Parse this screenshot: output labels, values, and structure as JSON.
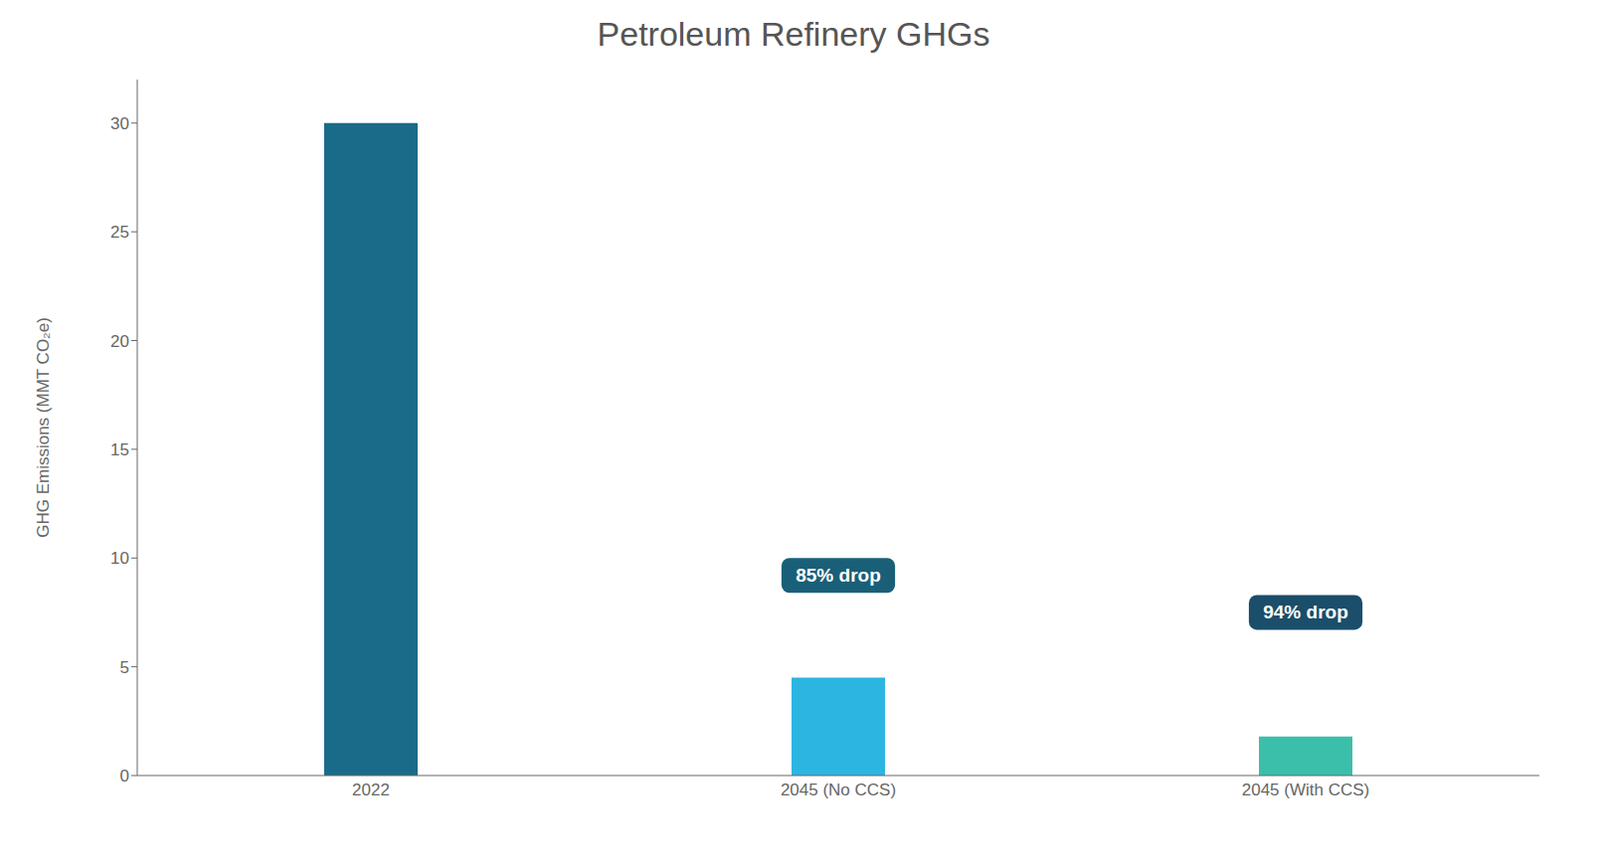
{
  "chart_data": {
    "type": "bar",
    "title": "Petroleum Refinery GHGs",
    "categories": [
      "2022",
      "2045 (No CCS)",
      "2045 (With CCS)"
    ],
    "values": [
      30,
      4.5,
      1.8
    ],
    "colors": [
      "#1a6b8a",
      "#2cb5e0",
      "#3bbfaa"
    ],
    "ylabel": "GHG Emissions (MMT CO₂e)",
    "ylim": [
      0,
      32
    ],
    "yticks": [
      0,
      5,
      10,
      15,
      20,
      25,
      30
    ],
    "annotations": [
      {
        "text": "85% drop",
        "x": "2045 (No CCS)",
        "y": 9.2,
        "color": "#1a5f78"
      },
      {
        "text": "94% drop",
        "x": "2045 (With CCS)",
        "y": 7.5,
        "color": "#1a4e6a"
      }
    ]
  }
}
